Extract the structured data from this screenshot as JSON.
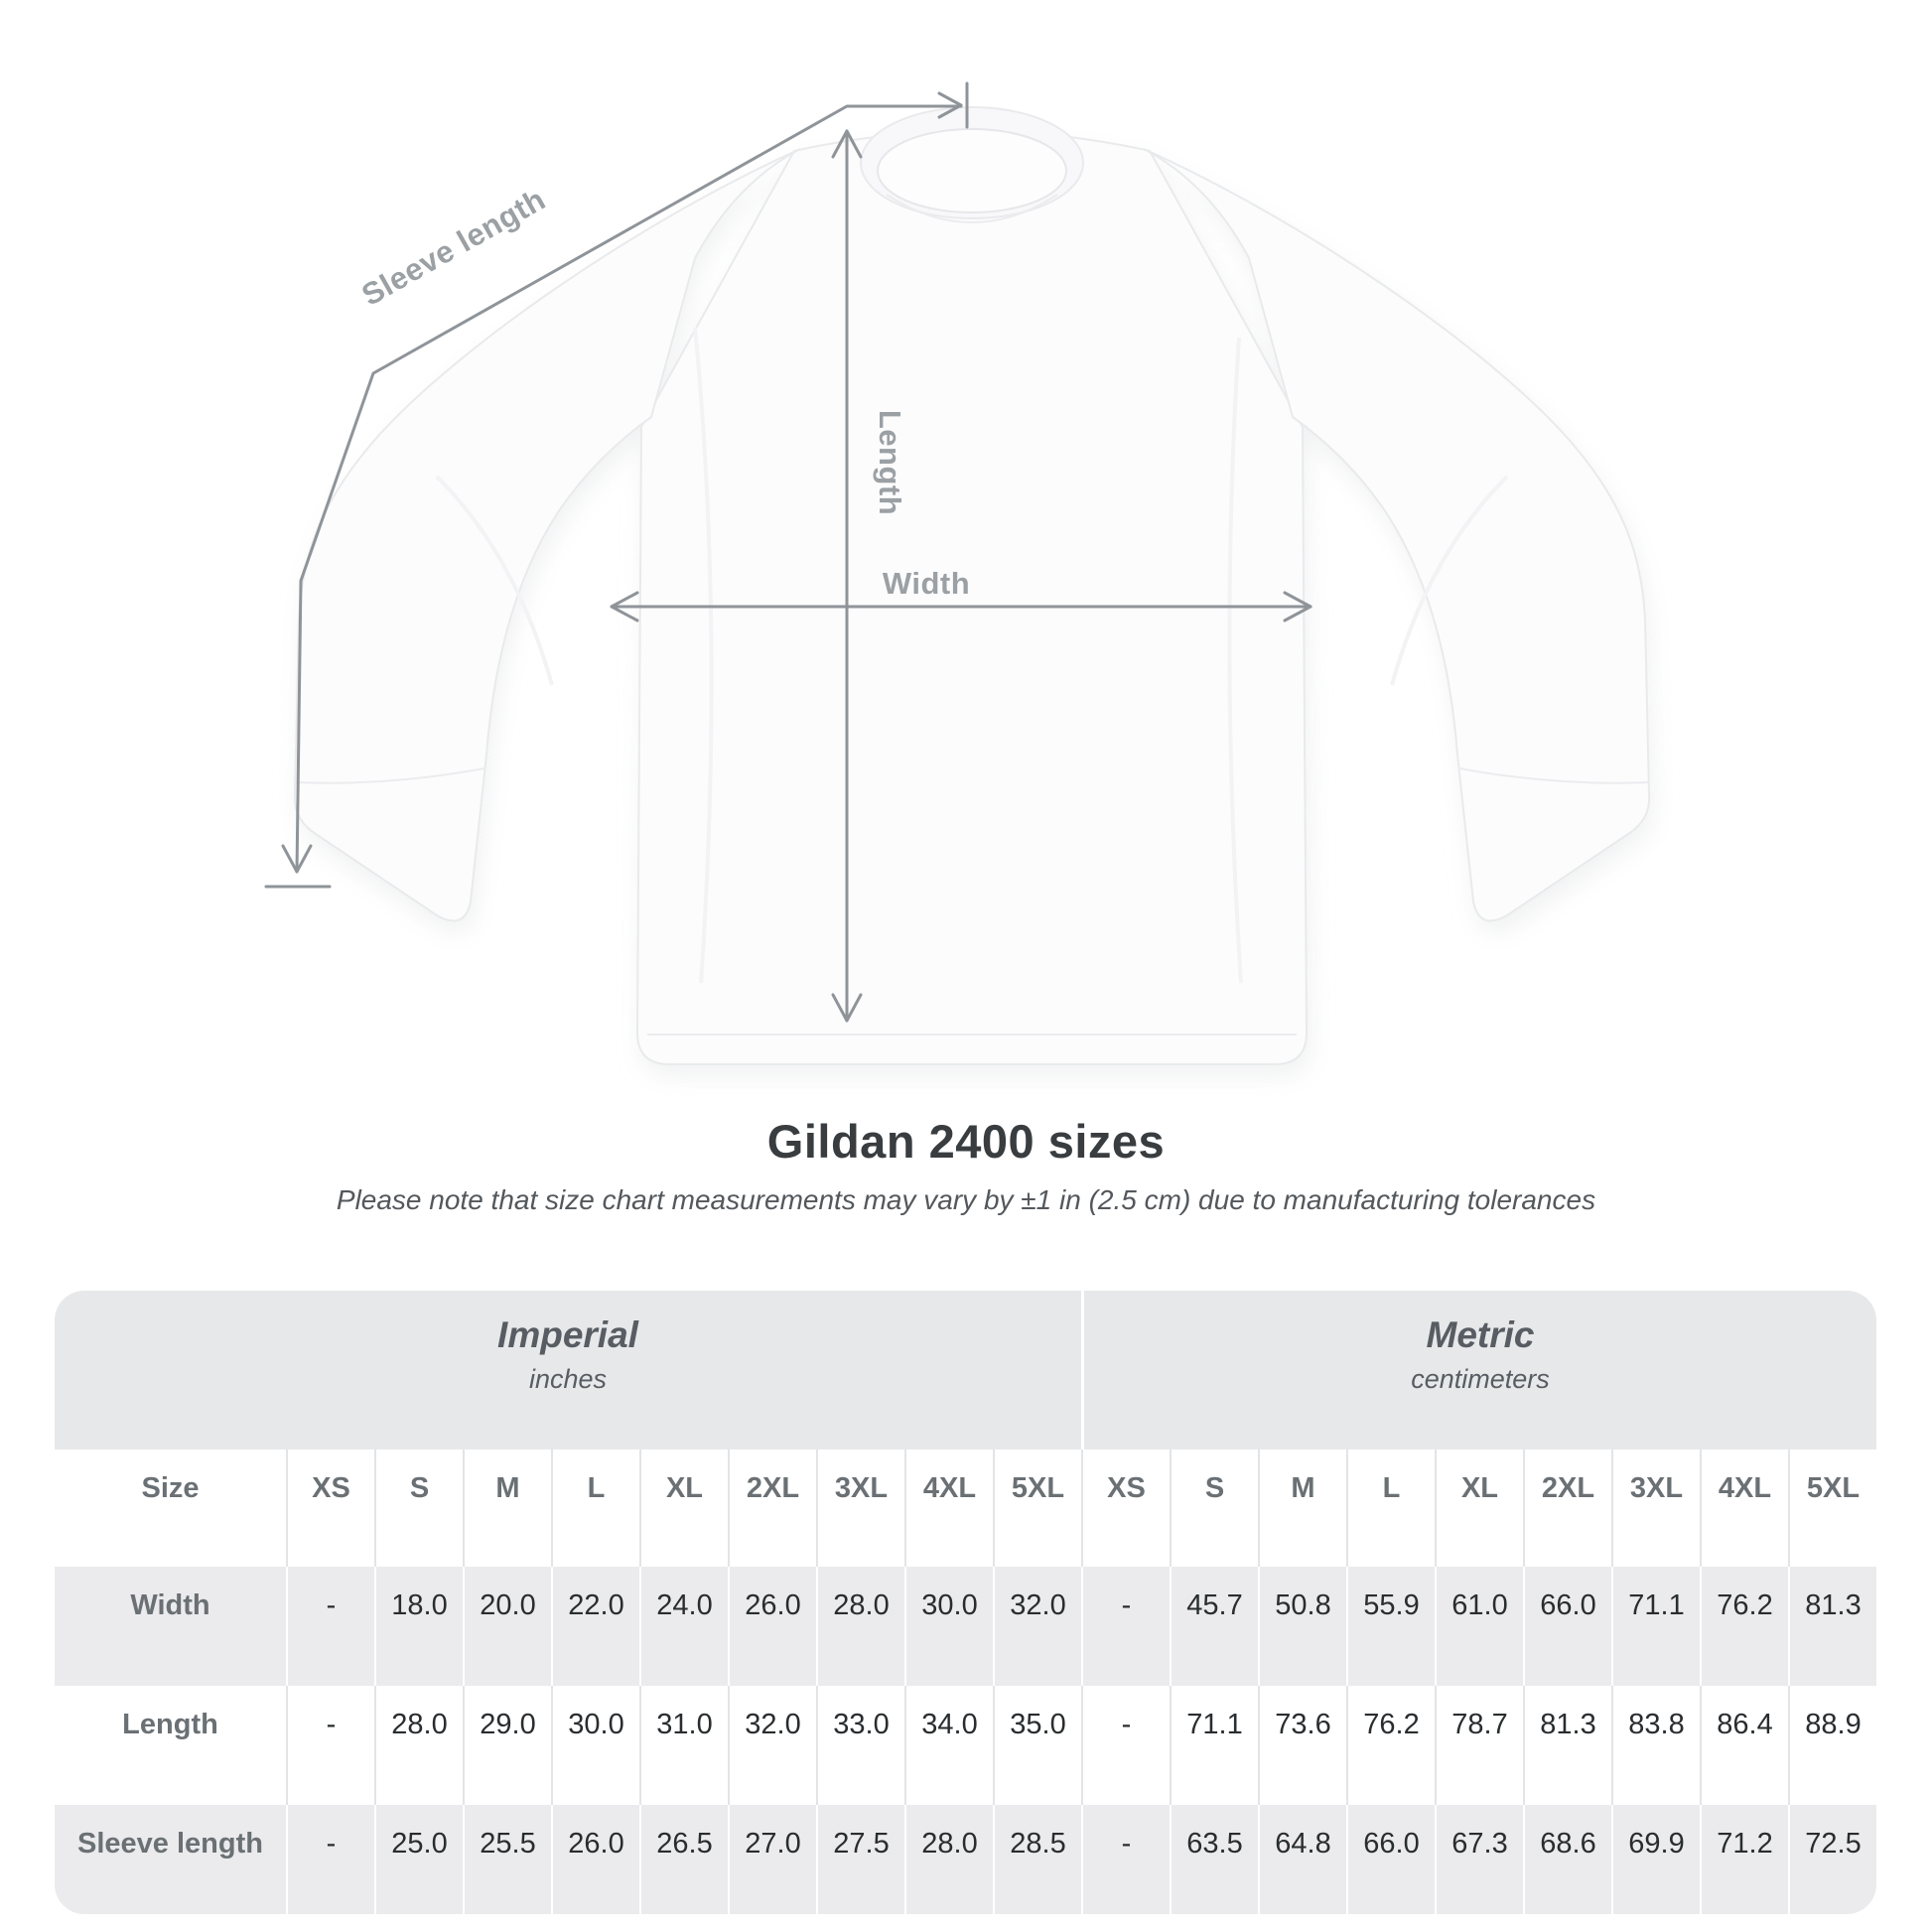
{
  "title": "Gildan 2400 sizes",
  "subtitle": "Please note that size chart measurements may vary by ±1 in (2.5 cm) due to manufacturing tolerances",
  "diagram": {
    "sleeve_length_label": "Sleeve length",
    "length_label": "Length",
    "width_label": "Width",
    "line_color": "#8f9499",
    "label_color": "#9ba0a4"
  },
  "table": {
    "corner_header": "Size",
    "groups": [
      {
        "label": "Imperial",
        "unit": "inches",
        "sizes": [
          "XS",
          "S",
          "M",
          "L",
          "XL",
          "2XL",
          "3XL",
          "4XL",
          "5XL"
        ]
      },
      {
        "label": "Metric",
        "unit": "centimeters",
        "sizes": [
          "XS",
          "S",
          "M",
          "L",
          "XL",
          "2XL",
          "3XL",
          "4XL",
          "5XL"
        ]
      }
    ],
    "rows": [
      {
        "label": "Width",
        "imperial": [
          "-",
          "18.0",
          "20.0",
          "22.0",
          "24.0",
          "26.0",
          "28.0",
          "30.0",
          "32.0"
        ],
        "metric": [
          "-",
          "45.7",
          "50.8",
          "55.9",
          "61.0",
          "66.0",
          "71.1",
          "76.2",
          "81.3"
        ]
      },
      {
        "label": "Length",
        "imperial": [
          "-",
          "28.0",
          "29.0",
          "30.0",
          "31.0",
          "32.0",
          "33.0",
          "34.0",
          "35.0"
        ],
        "metric": [
          "-",
          "71.1",
          "73.6",
          "76.2",
          "78.7",
          "81.3",
          "83.8",
          "86.4",
          "88.9"
        ]
      },
      {
        "label": "Sleeve length",
        "imperial": [
          "-",
          "25.0",
          "25.5",
          "26.0",
          "26.5",
          "27.0",
          "27.5",
          "28.0",
          "28.5"
        ],
        "metric": [
          "-",
          "63.5",
          "64.8",
          "66.0",
          "67.3",
          "68.6",
          "69.9",
          "71.2",
          "72.5"
        ]
      }
    ]
  },
  "chart_data": {
    "type": "table",
    "title": "Gildan 2400 sizes",
    "note": "Please note that size chart measurements may vary by ±1 in (2.5 cm) due to manufacturing tolerances",
    "unit_groups": [
      "Imperial (inches)",
      "Metric (centimeters)"
    ],
    "columns": [
      "Size",
      "XS",
      "S",
      "M",
      "L",
      "XL",
      "2XL",
      "3XL",
      "4XL",
      "5XL",
      "XS",
      "S",
      "M",
      "L",
      "XL",
      "2XL",
      "3XL",
      "4XL",
      "5XL"
    ],
    "rows": [
      [
        "Width",
        "-",
        18.0,
        20.0,
        22.0,
        24.0,
        26.0,
        28.0,
        30.0,
        32.0,
        "-",
        45.7,
        50.8,
        55.9,
        61.0,
        66.0,
        71.1,
        76.2,
        81.3
      ],
      [
        "Length",
        "-",
        28.0,
        29.0,
        30.0,
        31.0,
        32.0,
        33.0,
        34.0,
        35.0,
        "-",
        71.1,
        73.6,
        76.2,
        78.7,
        81.3,
        83.8,
        86.4,
        88.9
      ],
      [
        "Sleeve length",
        "-",
        25.0,
        25.5,
        26.0,
        26.5,
        27.0,
        27.5,
        28.0,
        28.5,
        "-",
        63.5,
        64.8,
        66.0,
        67.3,
        68.6,
        69.9,
        71.2,
        72.5
      ]
    ],
    "measured_dimensions": [
      "Width",
      "Length",
      "Sleeve length"
    ]
  },
  "colors": {
    "band_bg": "#e7e8ea",
    "stripe_bg": "#ebebed",
    "separator_on_white": "#e3e4e6",
    "separator_on_gray": "#ffffff",
    "title_text": "#393d40",
    "table_label_text": "#6a7074",
    "table_value_text": "#2a2d2f"
  }
}
